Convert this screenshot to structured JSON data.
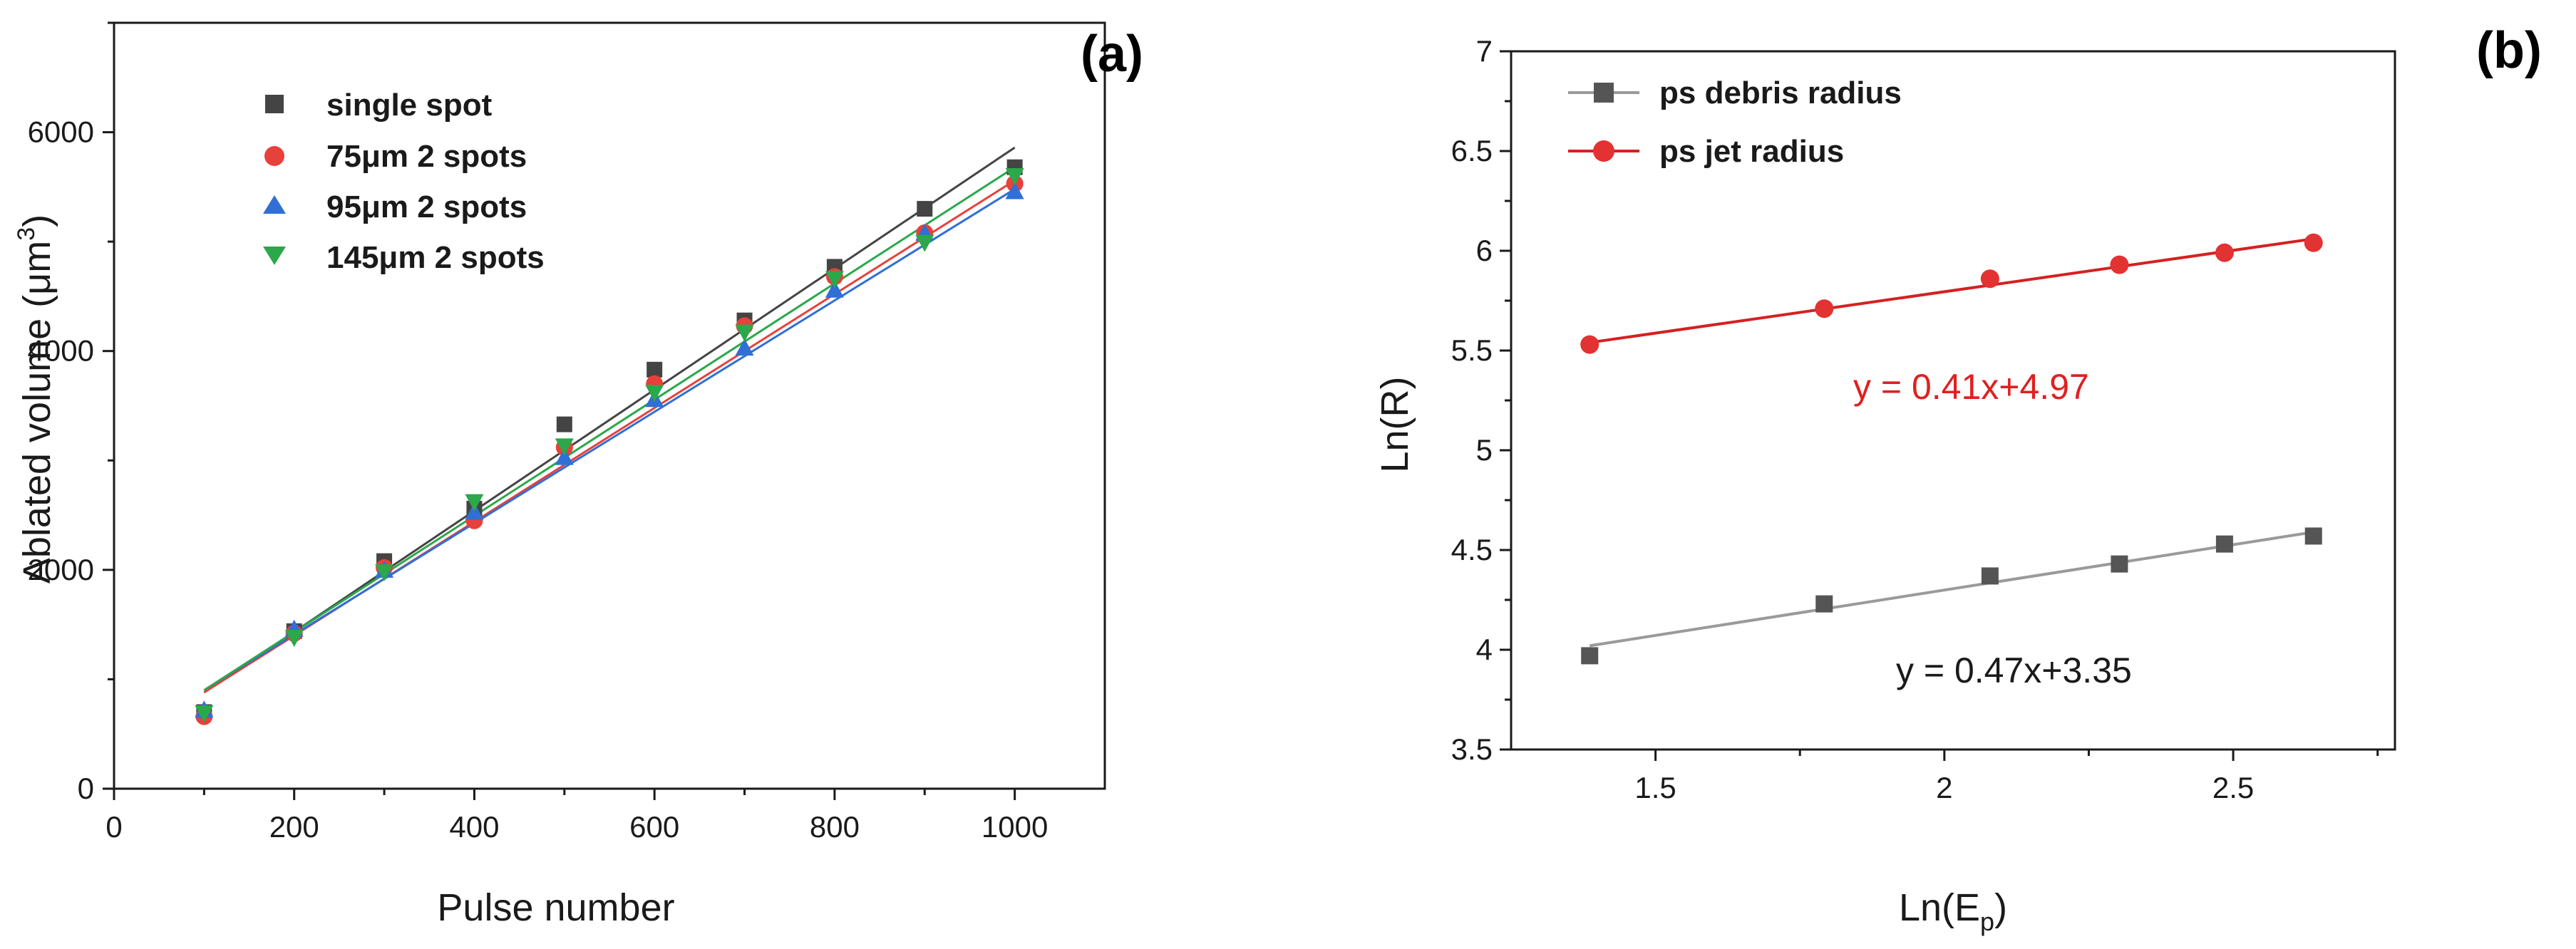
{
  "chart_data": [
    {
      "type": "scatter",
      "panel_label": "(a)",
      "xlabel": "Pulse number",
      "ylabel_main": "Ablated volume (μm",
      "ylabel_sup": "3",
      "ylabel_tail": ")",
      "xlim": [
        0,
        1100
      ],
      "ylim": [
        0,
        7000
      ],
      "xticks": [
        0,
        200,
        400,
        600,
        800,
        1000
      ],
      "yticks": [
        0,
        2000,
        4000,
        6000
      ],
      "legend_position": "top-left",
      "series": [
        {
          "name": "single spot",
          "marker": "square",
          "color": "#444444",
          "x": [
            100,
            200,
            300,
            400,
            500,
            600,
            700,
            800,
            900,
            1000
          ],
          "y": [
            700,
            1440,
            2080,
            2560,
            3330,
            3830,
            4280,
            4770,
            5300,
            5680
          ],
          "fit": [
            [
              100,
              880
            ],
            [
              1000,
              5860
            ]
          ]
        },
        {
          "name": "75μm 2 spots",
          "marker": "circle",
          "color": "#e8403a",
          "x": [
            100,
            200,
            300,
            400,
            500,
            600,
            700,
            800,
            900,
            1000
          ],
          "y": [
            660,
            1420,
            2020,
            2450,
            3120,
            3700,
            4230,
            4680,
            5080,
            5530
          ],
          "fit": [
            [
              100,
              880
            ],
            [
              1000,
              5560
            ]
          ]
        },
        {
          "name": "95μm 2 spots",
          "marker": "triangle-up",
          "color": "#2f6fd6",
          "x": [
            100,
            200,
            300,
            400,
            500,
            600,
            700,
            800,
            900,
            1000
          ],
          "y": [
            720,
            1460,
            2000,
            2530,
            3030,
            3560,
            4030,
            4560,
            5080,
            5460
          ],
          "fit": [
            [
              100,
              900
            ],
            [
              1000,
              5480
            ]
          ]
        },
        {
          "name": "145μm 2 spots",
          "marker": "triangle-down",
          "color": "#2aa84a",
          "x": [
            100,
            200,
            300,
            400,
            500,
            600,
            700,
            800,
            900,
            1000
          ],
          "y": [
            690,
            1380,
            1980,
            2620,
            3130,
            3620,
            4170,
            4660,
            4990,
            5600
          ],
          "fit": [
            [
              100,
              900
            ],
            [
              1000,
              5680
            ]
          ]
        }
      ]
    },
    {
      "type": "scatter",
      "panel_label": "(b)",
      "xlabel_main": "Ln(E",
      "xlabel_sub": "p",
      "xlabel_tail": ")",
      "ylabel": "Ln(R)",
      "xlim": [
        1.25,
        2.78
      ],
      "ylim": [
        3.5,
        7
      ],
      "xticks": [
        1.5,
        2,
        2.5
      ],
      "xtick_labels": [
        "1.5",
        "2",
        "2.5"
      ],
      "yticks": [
        3.5,
        4,
        4.5,
        5,
        5.5,
        6,
        6.5,
        7
      ],
      "ytick_labels": [
        "3.5",
        "4",
        "4.5",
        "5",
        "5.5",
        "6",
        "6.5",
        "7"
      ],
      "legend_position": "top-left",
      "series": [
        {
          "name": "ps debris radius",
          "marker": "square",
          "color": "#555555",
          "line_color": "#9a9a9a",
          "x": [
            1.386,
            1.792,
            2.079,
            2.303,
            2.485,
            2.639
          ],
          "y": [
            3.97,
            4.23,
            4.37,
            4.43,
            4.53,
            4.57
          ],
          "fit": [
            [
              1.386,
              4.02
            ],
            [
              2.639,
              4.59
            ]
          ],
          "equation": "y = 0.47x+3.35"
        },
        {
          "name": "ps jet radius",
          "marker": "circle",
          "color": "#e23232",
          "line_color": "#d62020",
          "x": [
            1.386,
            1.792,
            2.079,
            2.303,
            2.485,
            2.639
          ],
          "y": [
            5.53,
            5.71,
            5.86,
            5.93,
            5.99,
            6.04
          ],
          "fit": [
            [
              1.386,
              5.54
            ],
            [
              2.639,
              6.06
            ]
          ],
          "equation": "y = 0.41x+4.97"
        }
      ]
    }
  ]
}
